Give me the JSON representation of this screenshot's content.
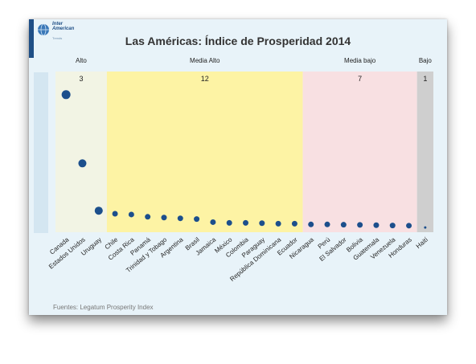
{
  "logo": {
    "text": "Inter American",
    "subtext": "Trends"
  },
  "chart_data": {
    "type": "scatter",
    "title": "Las Américas: Índice de Prosperidad 2014",
    "source": "Fuentes: Legatum Prosperity Index",
    "categories": [
      "Canada",
      "Estados Unidos",
      "Uruguay",
      "Chile",
      "Costa Rica",
      "Panamá",
      "Trinidad y Tobago",
      "Argentina",
      "Brasil",
      "Jamaica",
      "México",
      "Colombia",
      "Paraguay",
      "República Dominicana",
      "Ecuador",
      "Nicaragua",
      "Perú",
      "El Salvador",
      "Bolivia",
      "Guatemala",
      "Venezuela",
      "Honduras",
      "Haití"
    ],
    "values": [
      8.8,
      4.3,
      1.2,
      1.0,
      0.95,
      0.8,
      0.75,
      0.7,
      0.65,
      0.45,
      0.4,
      0.4,
      0.38,
      0.35,
      0.35,
      0.3,
      0.3,
      0.28,
      0.27,
      0.25,
      0.23,
      0.22,
      0.1
    ],
    "sizes": [
      3,
      2,
      2,
      1,
      1,
      1,
      1,
      1,
      1,
      1,
      1,
      1,
      1,
      1,
      1,
      1,
      1,
      1,
      1,
      1,
      1,
      1,
      0
    ],
    "groups": [
      {
        "label": "Alto",
        "count": "3",
        "start": 0,
        "end": 3,
        "color": "#f2f4e4"
      },
      {
        "label": "Media Alto",
        "count": "12",
        "start": 3,
        "end": 15,
        "color": "#fdf3a4"
      },
      {
        "label": "Media bajo",
        "count": "7",
        "start": 15,
        "end": 22,
        "color": "#f8e0e2"
      },
      {
        "label": "Bajo",
        "count": "1",
        "start": 22,
        "end": 23,
        "color": "#cfcfcf"
      }
    ],
    "ylim": [
      0,
      10
    ],
    "point_color": "#1c4f8c"
  }
}
